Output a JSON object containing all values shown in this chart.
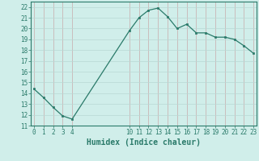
{
  "x": [
    0,
    1,
    2,
    3,
    4,
    10,
    11,
    12,
    13,
    14,
    15,
    16,
    17,
    18,
    19,
    20,
    21,
    22,
    23
  ],
  "y": [
    14.4,
    13.6,
    12.7,
    11.9,
    11.6,
    19.8,
    21.0,
    21.7,
    21.9,
    21.1,
    20.0,
    20.4,
    19.6,
    19.6,
    19.2,
    19.2,
    19.0,
    18.4,
    17.7
  ],
  "line_color": "#2a7a6a",
  "marker_color": "#2a7a6a",
  "bg_color": "#d0eeea",
  "vgrid_color": "#c8aaaa",
  "hgrid_color": "#b8d8d4",
  "xlabel": "Humidex (Indice chaleur)",
  "ylim": [
    11,
    22.5
  ],
  "yticks": [
    11,
    12,
    13,
    14,
    15,
    16,
    17,
    18,
    19,
    20,
    21,
    22
  ],
  "xtick_labels": [
    "0",
    "1",
    "2",
    "3",
    "4",
    "10",
    "11",
    "12",
    "13",
    "14",
    "15",
    "16",
    "17",
    "18",
    "19",
    "20",
    "21",
    "22",
    "23"
  ],
  "xtick_positions": [
    0,
    1,
    2,
    3,
    4,
    10,
    11,
    12,
    13,
    14,
    15,
    16,
    17,
    18,
    19,
    20,
    21,
    22,
    23
  ],
  "xlim": [
    -0.3,
    23.3
  ],
  "tick_color": "#2a7a6a",
  "xlabel_color": "#2a7a6a",
  "spine_color": "#2a7a6a"
}
